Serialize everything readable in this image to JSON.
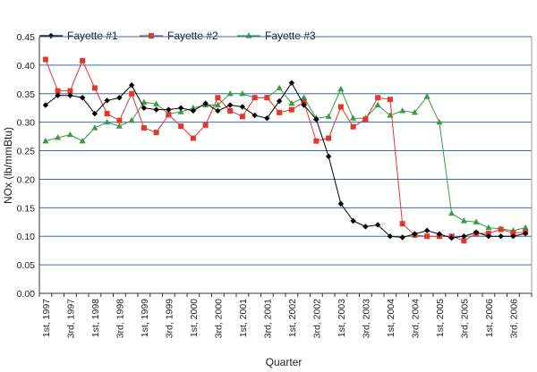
{
  "chart_data": {
    "type": "line",
    "categories": [
      "1st, 1997",
      "",
      "3rd, 1997",
      "",
      "1st, 1998",
      "",
      "3rd, 1998",
      "",
      "1st, 1999",
      "",
      "3rd, 1999",
      "",
      "1st, 2000",
      "",
      "3rd, 2000",
      "",
      "1st, 2001",
      "",
      "3rd, 2001",
      "",
      "1st, 2002",
      "",
      "3rd, 2002",
      "",
      "1st, 2003",
      "",
      "3rd, 2003",
      "",
      "1st, 2004",
      "",
      "3rd, 2004",
      "",
      "1st, 2005",
      "",
      "3rd, 2005",
      "",
      "1st, 2006",
      "",
      "3rd, 2006",
      ""
    ],
    "xlabel": "Quarter",
    "ylabel": "NOx (lb/mmBtu)",
    "ylim": [
      0,
      0.45
    ],
    "yticks": [
      "0.00",
      "0.05",
      "0.10",
      "0.15",
      "0.20",
      "0.25",
      "0.30",
      "0.35",
      "0.40",
      "0.45"
    ],
    "grid": "horizontal",
    "legend_position": "top",
    "series": [
      {
        "name": "Fayette #1",
        "color": "#000000",
        "marker": "diamond",
        "values": [
          0.33,
          0.347,
          0.347,
          0.343,
          0.315,
          0.338,
          0.343,
          0.365,
          0.325,
          0.322,
          0.322,
          0.325,
          0.32,
          0.333,
          0.32,
          0.33,
          0.327,
          0.312,
          0.307,
          0.337,
          0.369,
          0.33,
          0.305,
          0.24,
          0.157,
          0.127,
          0.117,
          0.12,
          0.1,
          0.098,
          0.104,
          0.11,
          0.104,
          0.097,
          0.1,
          0.107,
          0.1,
          0.1,
          0.1,
          0.105
        ]
      },
      {
        "name": "Fayette #2",
        "color": "#e2382b",
        "marker": "square",
        "values": [
          0.41,
          0.355,
          0.355,
          0.408,
          0.36,
          0.315,
          0.303,
          0.35,
          0.29,
          0.282,
          0.313,
          0.293,
          0.272,
          0.295,
          0.343,
          0.32,
          0.31,
          0.343,
          0.343,
          0.317,
          0.322,
          0.335,
          0.267,
          0.272,
          0.327,
          0.292,
          0.305,
          0.343,
          0.34,
          0.122,
          0.102,
          0.1,
          0.1,
          0.1,
          0.092,
          0.105,
          0.105,
          0.112,
          0.106,
          0.107
        ]
      },
      {
        "name": "Fayette #3",
        "color": "#3a9b47",
        "marker": "triangle",
        "values": [
          0.267,
          0.273,
          0.278,
          0.267,
          0.29,
          0.3,
          0.293,
          0.303,
          0.335,
          0.332,
          0.315,
          0.318,
          0.325,
          0.33,
          0.33,
          0.35,
          0.35,
          0.343,
          0.343,
          0.36,
          0.333,
          0.343,
          0.307,
          0.31,
          0.358,
          0.307,
          0.307,
          0.33,
          0.312,
          0.32,
          0.317,
          0.345,
          0.3,
          0.14,
          0.127,
          0.125,
          0.115,
          0.113,
          0.11,
          0.115
        ]
      }
    ]
  }
}
